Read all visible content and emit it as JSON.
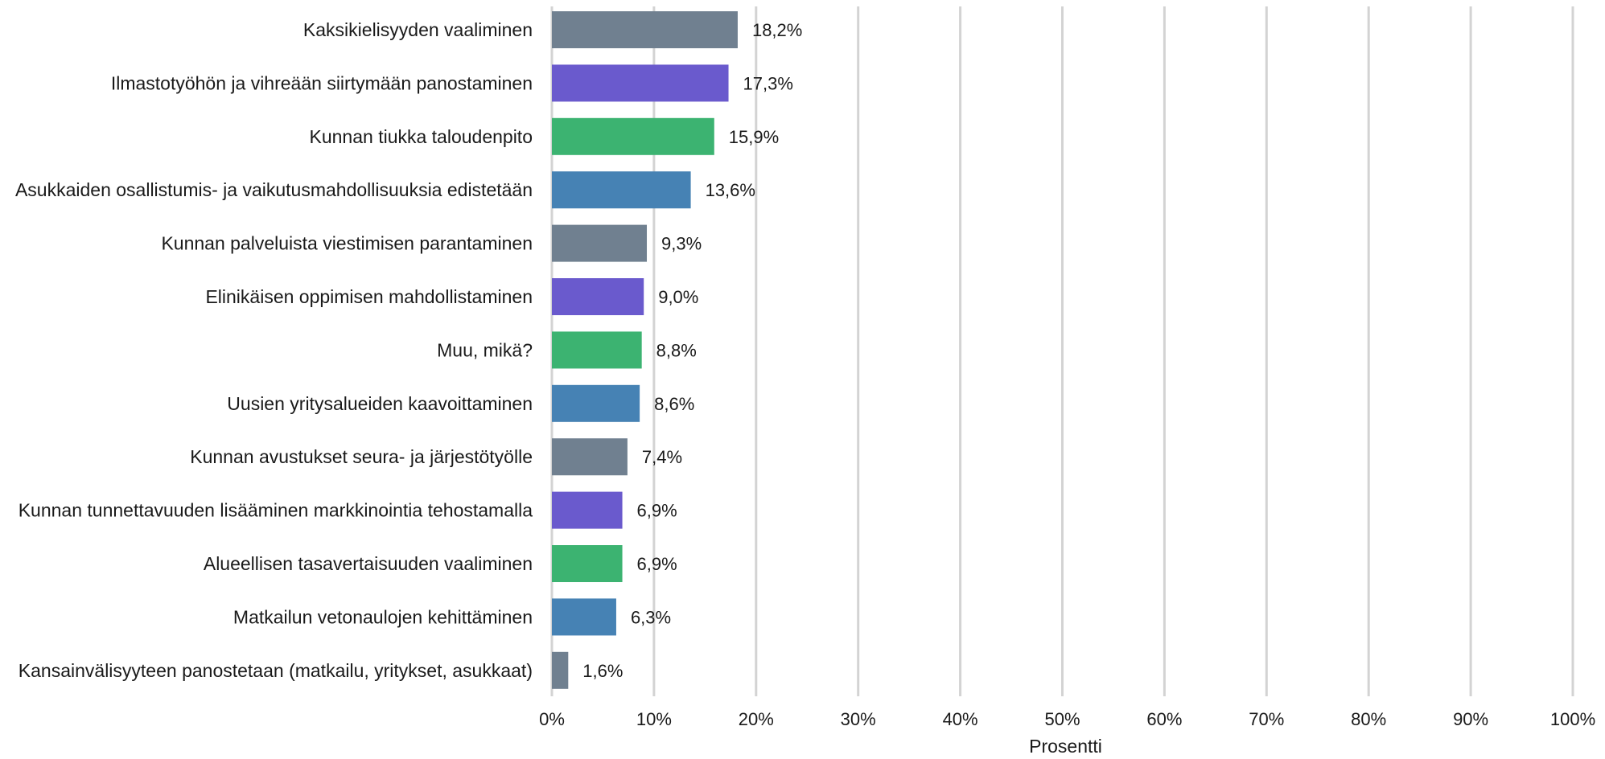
{
  "chart_data": {
    "type": "bar",
    "orientation": "horizontal",
    "categories": [
      "Kaksikielisyyden vaaliminen",
      "Ilmastotyöhön ja vihreään siirtymään panostaminen",
      "Kunnan tiukka taloudenpito",
      "Asukkaiden osallistumis- ja vaikutusmahdollisuuksia edistetään",
      "Kunnan palveluista viestimisen parantaminen",
      "Elinikäisen oppimisen mahdollistaminen",
      "Muu, mikä?",
      "Uusien yritysalueiden kaavoittaminen",
      "Kunnan avustukset seura- ja järjestötyölle",
      "Kunnan tunnettavuuden lisääminen markkinointia tehostamalla",
      "Alueellisen tasavertaisuuden vaaliminen",
      "Matkailun vetonaulojen kehittäminen",
      "Kansainvälisyyteen panostetaan (matkailu, yritykset, asukkaat)"
    ],
    "values": [
      18.2,
      17.3,
      15.9,
      13.6,
      9.3,
      9.0,
      8.8,
      8.6,
      7.4,
      6.9,
      6.9,
      6.3,
      1.6
    ],
    "value_labels": [
      "18,2%",
      "17,3%",
      "15,9%",
      "13,6%",
      "9,3%",
      "9,0%",
      "8,8%",
      "8,6%",
      "7,4%",
      "6,9%",
      "6,9%",
      "6,3%",
      "1,6%"
    ],
    "bar_colors": [
      "#708090",
      "#6A5ACD",
      "#3CB371",
      "#4682B4",
      "#708090",
      "#6A5ACD",
      "#3CB371",
      "#4682B4",
      "#708090",
      "#6A5ACD",
      "#3CB371",
      "#4682B4",
      "#708090"
    ],
    "xlim": [
      0,
      100
    ],
    "xticks": [
      0,
      10,
      20,
      30,
      40,
      50,
      60,
      70,
      80,
      90,
      100
    ],
    "xtick_labels": [
      "0%",
      "10%",
      "20%",
      "30%",
      "40%",
      "50%",
      "60%",
      "70%",
      "80%",
      "90%",
      "100%"
    ],
    "xlabel": "Prosentti",
    "ylabel": "",
    "title": "",
    "grid": true,
    "grid_color": "#d3d3d3"
  }
}
